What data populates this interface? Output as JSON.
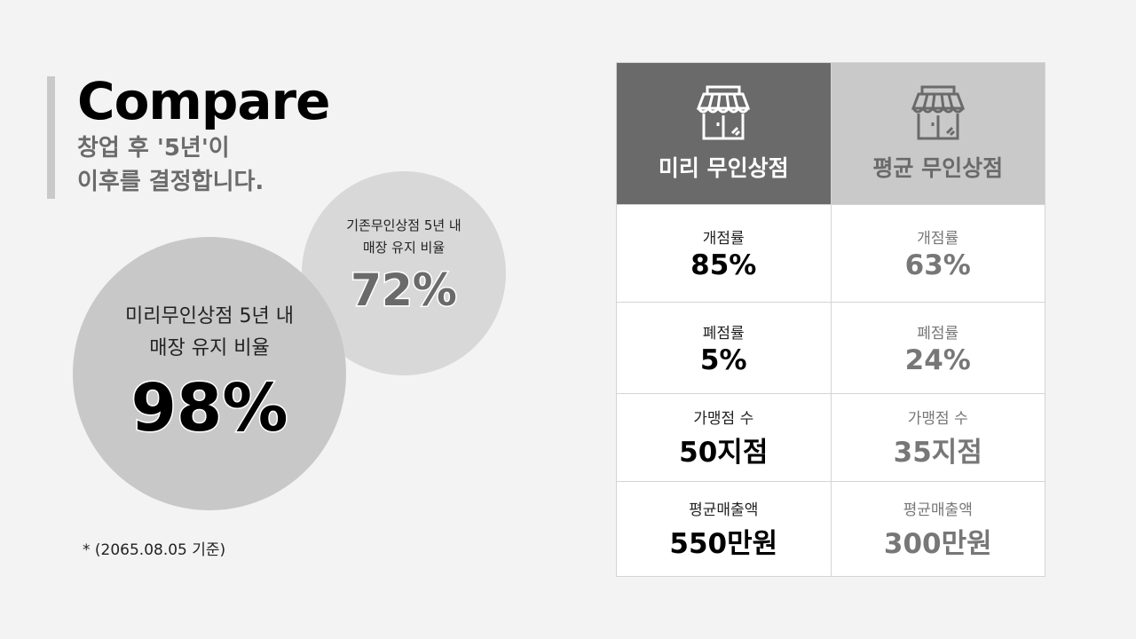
{
  "header": {
    "title": "Compare",
    "subtitle": "창업 후 '5년'이\n이후를 결정합니다."
  },
  "circles": {
    "miri": {
      "label": "미리무인상점 5년 내\n매장 유지 비율",
      "value": "98%"
    },
    "existing": {
      "label": "기존무인상점 5년 내\n매장 유지 비율",
      "value": "72%"
    }
  },
  "note": "* (2065.08.05 기준)",
  "table": {
    "columns": [
      {
        "title": "미리 무인상점",
        "icon": "storefront-icon"
      },
      {
        "title": "평균 무인상점",
        "icon": "storefront-icon"
      }
    ],
    "rows": [
      {
        "label": "개점률",
        "miri": "85%",
        "avg": "63%"
      },
      {
        "label": "폐점률",
        "miri": "5%",
        "avg": "24%"
      },
      {
        "label": "가맹점 수",
        "miri": "50지점",
        "avg": "35지점"
      },
      {
        "label": "평균매출액",
        "miri": "550만원",
        "avg": "300만원"
      }
    ]
  }
}
